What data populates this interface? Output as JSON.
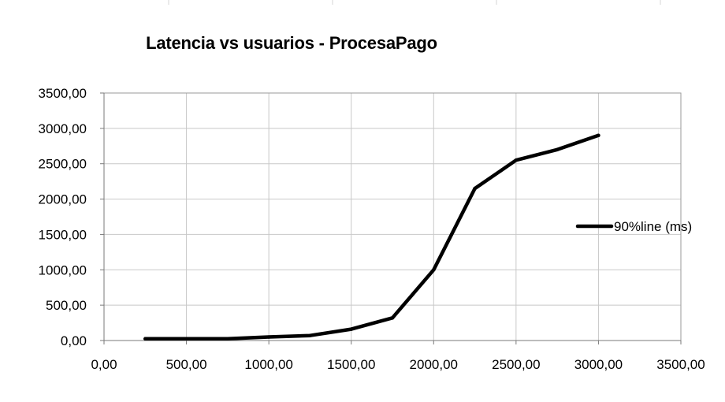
{
  "chart_data": {
    "type": "line",
    "title": "Latencia vs usuarios - ProcesaPago",
    "xlim": [
      0,
      3500
    ],
    "ylim": [
      0,
      3500
    ],
    "x_ticks": [
      0,
      500,
      1000,
      1500,
      2000,
      2500,
      3000,
      3500
    ],
    "y_ticks": [
      0,
      500,
      1000,
      1500,
      2000,
      2500,
      3000,
      3500
    ],
    "x_tick_labels": [
      "0,00",
      "500,00",
      "1000,00",
      "1500,00",
      "2000,00",
      "2500,00",
      "3000,00",
      "3500,00"
    ],
    "y_tick_labels": [
      "0,00",
      "500,00",
      "1000,00",
      "1500,00",
      "2000,00",
      "2500,00",
      "3000,00",
      "3500,00"
    ],
    "grid": true,
    "legend_position": "right",
    "series": [
      {
        "name": "90%line (ms)",
        "color": "#000000",
        "x": [
          250,
          500,
          750,
          1000,
          1250,
          1500,
          1750,
          2000,
          2250,
          2500,
          2750,
          3000
        ],
        "y": [
          25,
          25,
          25,
          50,
          70,
          160,
          320,
          1000,
          2150,
          2550,
          2700,
          2900
        ]
      }
    ]
  }
}
